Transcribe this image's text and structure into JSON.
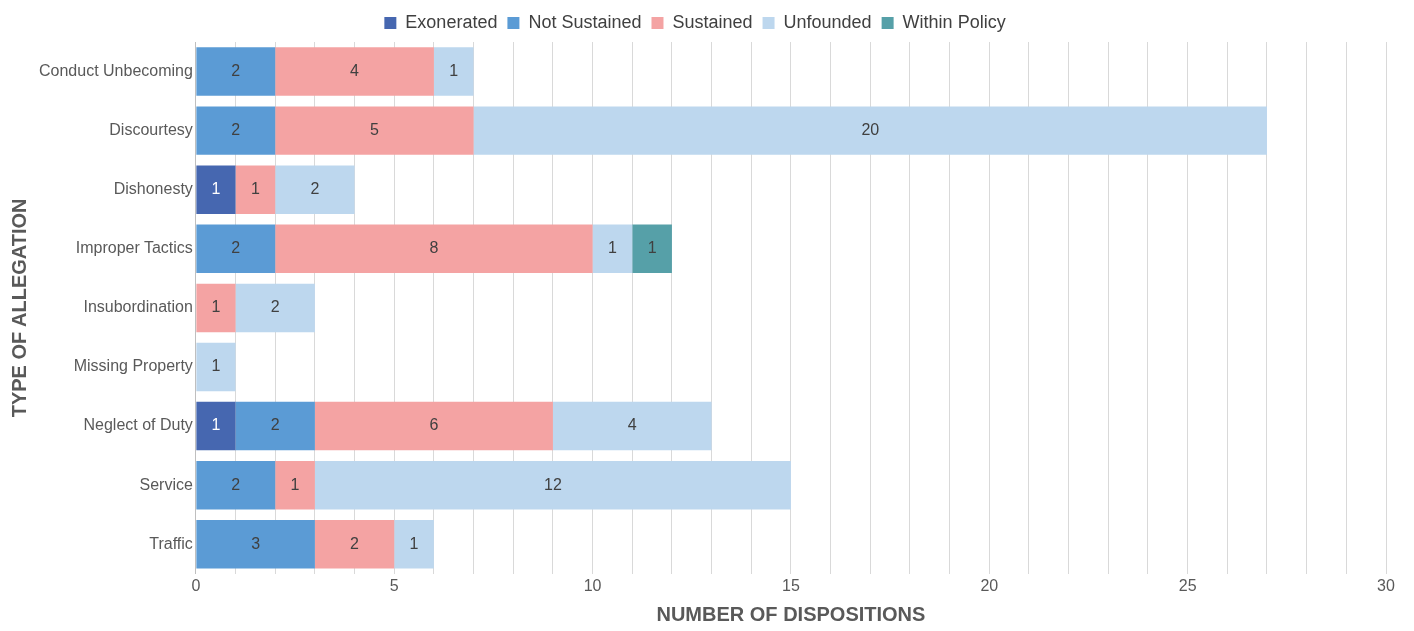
{
  "chart_data": {
    "type": "bar",
    "orientation": "horizontal",
    "stacked": true,
    "xlabel": "NUMBER OF DISPOSITIONS",
    "ylabel": "TYPE OF ALLEGATION",
    "categories": [
      "Conduct Unbecoming",
      "Discourtesy",
      "Dishonesty",
      "Improper Tactics",
      "Insubordination",
      "Missing Property",
      "Neglect of Duty",
      "Service",
      "Traffic"
    ],
    "series": [
      {
        "name": "Exonerated",
        "color": "#4667b0",
        "values": [
          null,
          null,
          1,
          null,
          null,
          null,
          1,
          null,
          null
        ]
      },
      {
        "name": "Not Sustained",
        "color": "#5b9bd5",
        "values": [
          2,
          2,
          null,
          2,
          null,
          null,
          2,
          2,
          3
        ]
      },
      {
        "name": "Sustained",
        "color": "#f4a3a3",
        "values": [
          4,
          5,
          1,
          8,
          1,
          null,
          6,
          1,
          2
        ]
      },
      {
        "name": "Unfounded",
        "color": "#bdd7ee",
        "values": [
          1,
          20,
          2,
          1,
          2,
          1,
          4,
          12,
          1
        ]
      },
      {
        "name": "Within Policy",
        "color": "#56a0a8",
        "values": [
          null,
          null,
          null,
          1,
          null,
          null,
          null,
          null,
          null
        ]
      }
    ],
    "xlim": [
      0,
      30
    ],
    "xticks": [
      0,
      {
        "value": 1,
        "label": null
      },
      {
        "value": 2,
        "label": null
      },
      {
        "value": 3,
        "label": null
      },
      {
        "value": 4,
        "label": null
      },
      5,
      {
        "value": 6,
        "label": null
      },
      {
        "value": 7,
        "label": null
      },
      {
        "value": 8,
        "label": null
      },
      {
        "value": 9,
        "label": null
      },
      10,
      {
        "value": 11,
        "label": null
      },
      {
        "value": 12,
        "label": null
      },
      {
        "value": 13,
        "label": null
      },
      {
        "value": 14,
        "label": null
      },
      15,
      {
        "value": 16,
        "label": null
      },
      {
        "value": 17,
        "label": null
      },
      {
        "value": 18,
        "label": null
      },
      {
        "value": 19,
        "label": null
      },
      20,
      {
        "value": 21,
        "label": null
      },
      {
        "value": 22,
        "label": null
      },
      {
        "value": 23,
        "label": null
      },
      {
        "value": 24,
        "label": null
      },
      25,
      {
        "value": 26,
        "label": null
      },
      {
        "value": 27,
        "label": null
      },
      {
        "value": 28,
        "label": null
      },
      {
        "value": 29,
        "label": null
      },
      30
    ],
    "grid": "x",
    "legend": "top",
    "data_labels": true
  }
}
